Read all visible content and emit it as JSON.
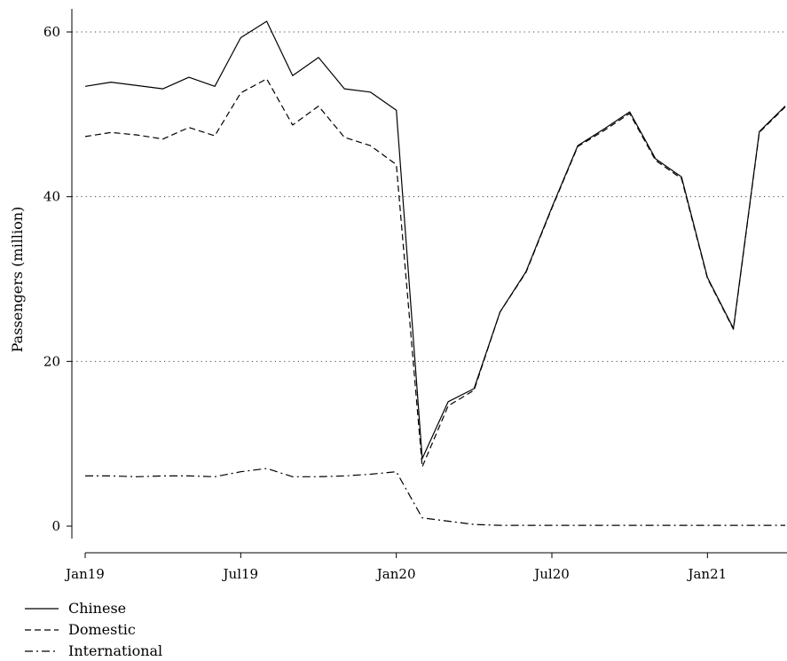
{
  "chart_data": {
    "type": "line",
    "title": "",
    "xlabel": "",
    "ylabel": "Passengers (million)",
    "x": [
      "Jan19",
      "Feb19",
      "Mar19",
      "Apr19",
      "May19",
      "Jun19",
      "Jul19",
      "Aug19",
      "Sep19",
      "Oct19",
      "Nov19",
      "Dec19",
      "Jan20",
      "Feb20",
      "Mar20",
      "Apr20",
      "May20",
      "Jun20",
      "Jul20",
      "Aug20",
      "Sep20",
      "Oct20",
      "Nov20",
      "Dec20",
      "Jan21",
      "Feb21",
      "Mar21",
      "Apr21"
    ],
    "xticks": [
      "Jan19",
      "Jul19",
      "Jan20",
      "Jul20",
      "Jan21"
    ],
    "yticks": [
      0,
      20,
      40,
      60
    ],
    "ylim": [
      -1.5,
      63
    ],
    "grid": "horizontal dotted",
    "legend_position": "bottom-left",
    "series": [
      {
        "name": "Chinese",
        "style": "solid",
        "values": [
          53.4,
          53.9,
          53.5,
          53.1,
          54.5,
          53.4,
          59.3,
          61.3,
          54.7,
          56.9,
          53.1,
          52.7,
          50.5,
          8.2,
          15.1,
          16.7,
          26.0,
          30.9,
          38.7,
          46.2,
          48.2,
          50.3,
          44.6,
          42.4,
          30.2,
          24.0,
          47.9,
          51.0
        ]
      },
      {
        "name": "Domestic",
        "style": "dashed",
        "values": [
          47.3,
          47.8,
          47.5,
          47.0,
          48.4,
          47.4,
          52.6,
          54.3,
          48.7,
          51.0,
          47.2,
          46.2,
          43.9,
          7.2,
          14.6,
          16.5,
          26.0,
          30.8,
          38.6,
          46.1,
          48.0,
          50.1,
          44.4,
          42.2,
          30.1,
          23.9,
          47.8,
          50.9
        ]
      },
      {
        "name": "International",
        "style": "dashdot",
        "values": [
          6.1,
          6.1,
          6.0,
          6.1,
          6.1,
          6.0,
          6.6,
          7.0,
          6.0,
          6.0,
          6.1,
          6.3,
          6.6,
          1.0,
          0.6,
          0.2,
          0.1,
          0.1,
          0.1,
          0.1,
          0.1,
          0.1,
          0.1,
          0.1,
          0.1,
          0.1,
          0.1,
          0.1
        ]
      }
    ]
  }
}
